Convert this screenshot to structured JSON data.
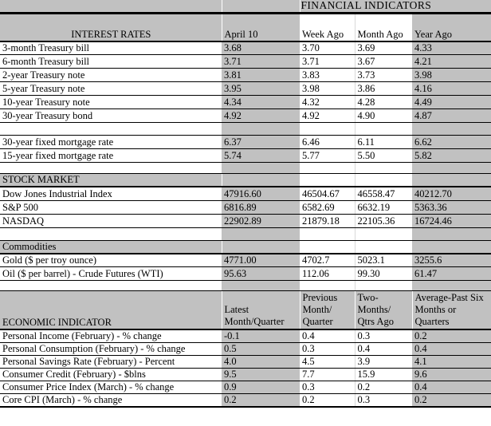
{
  "title": "FINANCIAL INDICATORS",
  "colors": {
    "cell_fill_gray": "#c1c1c1",
    "border_black": "#000000",
    "gridline_gray": "#d9d9d9"
  },
  "sections": {
    "interest_rates": {
      "label": "INTEREST RATES",
      "columns": [
        "April 10",
        "Week Ago",
        "Month Ago",
        "Year Ago"
      ],
      "treasury_rows": [
        {
          "label": "3-month Treasury bill",
          "values": [
            "3.68",
            "3.70",
            "3.69",
            "4.33"
          ]
        },
        {
          "label": "6-month Treasury bill",
          "values": [
            "3.71",
            "3.71",
            "3.67",
            "4.21"
          ]
        },
        {
          "label": "2-year Treasury note",
          "values": [
            "3.81",
            "3.83",
            "3.73",
            "3.98"
          ]
        },
        {
          "label": "5-year Treasury note",
          "values": [
            "3.95",
            "3.98",
            "3.86",
            "4.16"
          ]
        },
        {
          "label": "10-year Treasury note",
          "values": [
            "4.34",
            "4.32",
            "4.28",
            "4.49"
          ]
        },
        {
          "label": "30-year Treasury bond",
          "values": [
            "4.92",
            "4.92",
            "4.90",
            "4.87"
          ]
        }
      ],
      "mortgage_rows": [
        {
          "label": "30-year fixed mortgage rate",
          "values": [
            "6.37",
            "6.46",
            "6.11",
            "6.62"
          ]
        },
        {
          "label": "15-year fixed mortgage rate",
          "values": [
            "5.74",
            "5.77",
            "5.50",
            "5.82"
          ]
        }
      ]
    },
    "stock_market": {
      "label": "STOCK MARKET",
      "rows": [
        {
          "label": "Dow Jones Industrial Index",
          "values": [
            "47916.60",
            "46504.67",
            "46558.47",
            "40212.70"
          ]
        },
        {
          "label": "S&P 500",
          "values": [
            "6816.89",
            "6582.69",
            "6632.19",
            "5363.36"
          ]
        },
        {
          "label": "NASDAQ",
          "values": [
            "22902.89",
            "21879.18",
            "22105.36",
            "16724.46"
          ]
        }
      ]
    },
    "commodities": {
      "label": "Commodities",
      "rows": [
        {
          "label": "Gold ($ per troy ounce)",
          "values": [
            "4771.00",
            "4702.7",
            "5023.1",
            "3255.6"
          ]
        },
        {
          "label": "Oil ($ per barrel) - Crude Futures (WTI)",
          "values": [
            "95.63",
            "112.06",
            "99.30",
            "61.47"
          ]
        }
      ]
    },
    "economic": {
      "label": "ECONOMIC INDICATOR",
      "columns": [
        "Latest\nMonth/Quarter",
        "Previous\nMonth/\nQuarter",
        "Two-\nMonths/\nQtrs Ago",
        "Average-Past Six\nMonths or\nQuarters"
      ],
      "rows": [
        {
          "label": "Personal Income (February) - % change",
          "values": [
            "-0.1",
            "0.4",
            "0.3",
            "0.2"
          ]
        },
        {
          "label": "Personal Consumption (February) - % change",
          "values": [
            "0.5",
            "0.3",
            "0.4",
            "0.4"
          ]
        },
        {
          "label": "Personal Savings Rate (February) - Percent",
          "values": [
            "4.0",
            "4.5",
            "3.9",
            "4.1"
          ]
        },
        {
          "label": "Consumer Credit (February) - $blns",
          "values": [
            "9.5",
            "7.7",
            "15.9",
            "9.6"
          ]
        },
        {
          "label": "Consumer Price Index (March) - % change",
          "values": [
            "0.9",
            "0.3",
            "0.2",
            "0.4"
          ]
        },
        {
          "label": "Core CPI (March) - % change",
          "values": [
            "0.2",
            "0.2",
            "0.3",
            "0.2"
          ]
        }
      ]
    }
  }
}
